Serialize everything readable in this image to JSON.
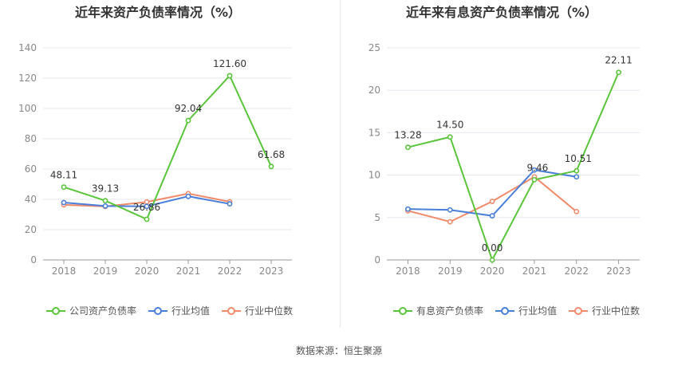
{
  "colors": {
    "green": "#5ac43a",
    "blue": "#4a7fd9",
    "orange": "#f08a6a",
    "grid": "#e6e8f0",
    "axis": "#999999",
    "tick": "#888888"
  },
  "source": "数据来源：恒生聚源",
  "chart_data": [
    {
      "type": "line",
      "title": "近年来资产负债率情况（%）",
      "xlabel": "",
      "ylabel": "",
      "ylim": [
        0,
        140
      ],
      "yticks": [
        0,
        20,
        40,
        60,
        80,
        100,
        120,
        140
      ],
      "ytick_labels": [
        "0",
        "20",
        "40",
        "60",
        "80",
        "100",
        "120",
        "140"
      ],
      "categories": [
        "2018",
        "2019",
        "2020",
        "2021",
        "2022",
        "2023"
      ],
      "grid": true,
      "legend_position": "bottom",
      "series": [
        {
          "name": "公司资产负债率",
          "color": "#5ac43a",
          "values": [
            48.11,
            39.13,
            26.86,
            92.04,
            121.6,
            61.68
          ],
          "labels": [
            "48.11",
            "39.13",
            "26.86",
            "92.04",
            "121.60",
            "61.68"
          ]
        },
        {
          "name": "行业均值",
          "color": "#4a7fd9",
          "values": [
            37.9,
            35.6,
            35.4,
            42.0,
            37.0,
            null
          ]
        },
        {
          "name": "行业中位数",
          "color": "#f08a6a",
          "values": [
            36.4,
            35.3,
            38.3,
            43.8,
            38.4,
            null
          ]
        }
      ]
    },
    {
      "type": "line",
      "title": "近年来有息资产负债率情况（%）",
      "xlabel": "",
      "ylabel": "",
      "ylim": [
        0,
        25
      ],
      "yticks": [
        0,
        5,
        10,
        15,
        20,
        25
      ],
      "ytick_labels": [
        "0",
        "5",
        "10",
        "15",
        "20",
        "25"
      ],
      "categories": [
        "2018",
        "2019",
        "2020",
        "2021",
        "2022",
        "2023"
      ],
      "grid": true,
      "legend_position": "bottom",
      "series": [
        {
          "name": "有息资产负债率",
          "color": "#5ac43a",
          "values": [
            13.28,
            14.5,
            0.0,
            9.46,
            10.51,
            22.11
          ],
          "labels": [
            "13.28",
            "14.50",
            "0.00",
            "9.46",
            "10.51",
            "22.11"
          ]
        },
        {
          "name": "行业均值",
          "color": "#4a7fd9",
          "values": [
            6.0,
            5.9,
            5.2,
            10.6,
            9.8,
            null
          ]
        },
        {
          "name": "行业中位数",
          "color": "#f08a6a",
          "values": [
            5.8,
            4.5,
            6.9,
            9.8,
            5.7,
            null
          ]
        }
      ]
    }
  ]
}
